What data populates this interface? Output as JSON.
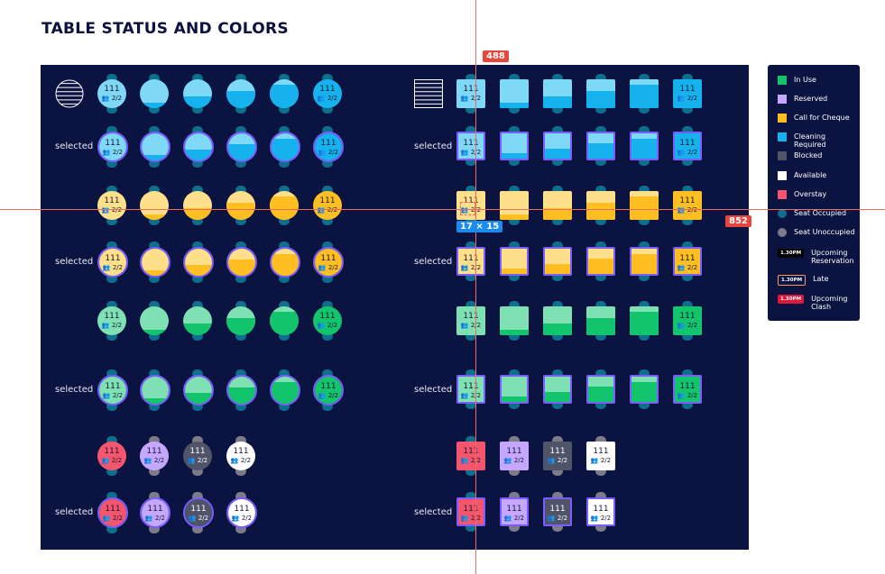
{
  "title": "TABLE STATUS AND COLORS",
  "selected_label": "selected",
  "table_number": "111",
  "table_seats": "2/2",
  "colors": {
    "cleaning_light": "#7fd8f5",
    "cleaning": "#16b2ee",
    "cheque_light": "#ffe08a",
    "cheque": "#ffbe22",
    "inuse_light": "#7fe0b4",
    "inuse": "#12c46b",
    "overstay": "#f5566e",
    "reserved": "#c6a7ff",
    "blocked": "#505468",
    "available": "#ffffff",
    "selected_border": "#7a5cff",
    "seat_occupied": "#0d6e8e",
    "seat_unoccupied": "#7b7b8a",
    "board_bg": "#0b1340"
  },
  "status_rows": [
    {
      "status": "Cleaning Required",
      "levels": [
        0,
        0.2,
        0.4,
        0.6,
        0.8,
        1
      ]
    },
    {
      "status": "Call for Cheque",
      "levels": [
        0,
        0.2,
        0.4,
        0.6,
        0.8,
        1
      ]
    },
    {
      "status": "In Use",
      "levels": [
        0,
        0.2,
        0.4,
        0.6,
        0.8,
        1
      ]
    }
  ],
  "single_states": [
    "Overstay",
    "Reserved",
    "Blocked",
    "Available"
  ],
  "legend": {
    "items": [
      {
        "label": "In Use",
        "color": "#12c46b",
        "kind": "swatch"
      },
      {
        "label": "Reserved",
        "color": "#c6a7ff",
        "kind": "swatch"
      },
      {
        "label": "Call for Cheque",
        "color": "#ffbe22",
        "kind": "swatch"
      },
      {
        "label": "Cleaning Required",
        "color": "#16b2ee",
        "kind": "swatch"
      },
      {
        "label": "Blocked",
        "color": "#505468",
        "kind": "swatch"
      },
      {
        "label": "Available",
        "color": "#ffffff",
        "kind": "swatch"
      },
      {
        "label": "Overstay",
        "color": "#f5566e",
        "kind": "swatch"
      },
      {
        "label": "Seat Occupied",
        "color": "#0d6e8e",
        "kind": "dot"
      },
      {
        "label": "Seat Unoccupied",
        "color": "#7b7b8a",
        "kind": "dot"
      }
    ],
    "badges": [
      {
        "time": "1.30PM",
        "label": "Upcoming Reservation",
        "style": "black"
      },
      {
        "time": "1.30PM",
        "label": "Late",
        "style": "outline"
      },
      {
        "time": "1.30PM",
        "label": "Upcoming Clash",
        "style": "red"
      }
    ]
  },
  "guides": {
    "vertical_readout": "488",
    "horizontal_readout": "852",
    "size_readout": "17 × 15"
  }
}
